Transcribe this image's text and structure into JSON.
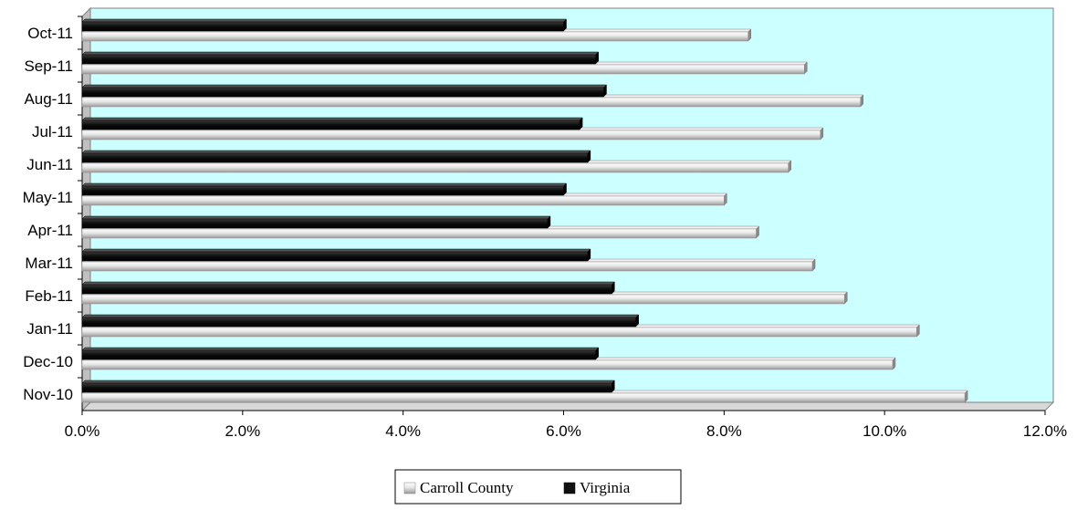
{
  "chart_data": {
    "type": "bar",
    "orientation": "horizontal",
    "categories": [
      "Nov-10",
      "Dec-10",
      "Jan-11",
      "Feb-11",
      "Mar-11",
      "Apr-11",
      "May-11",
      "Jun-11",
      "Jul-11",
      "Aug-11",
      "Sep-11",
      "Oct-11"
    ],
    "series": [
      {
        "name": "Carroll County",
        "color": "#d9d9d9",
        "values": [
          11.0,
          10.1,
          10.4,
          9.5,
          9.1,
          8.4,
          8.0,
          8.8,
          9.2,
          9.7,
          9.0,
          8.3
        ]
      },
      {
        "name": "Virginia",
        "color": "#111111",
        "values": [
          6.6,
          6.4,
          6.9,
          6.6,
          6.3,
          5.8,
          6.0,
          6.3,
          6.2,
          6.5,
          6.4,
          6.0
        ]
      }
    ],
    "xlim": [
      0,
      12
    ],
    "x_ticks": [
      "0.0%",
      "2.0%",
      "4.0%",
      "6.0%",
      "8.0%",
      "10.0%",
      "12.0%"
    ],
    "title": "",
    "xlabel": "",
    "ylabel": "",
    "plot_background": "#ccffff",
    "grid": false,
    "legend_position": "bottom"
  }
}
